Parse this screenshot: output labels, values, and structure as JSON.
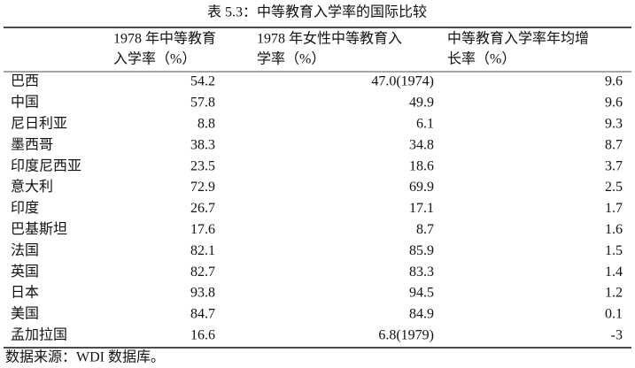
{
  "table": {
    "title": "表 5.3：中等教育入学率的国际比较",
    "header": [
      [
        "1978 年中等教育",
        "入学率（%）"
      ],
      [
        "1978 年女性中等教育入",
        "学率（%）"
      ],
      [
        "中等教育入学率年均增",
        "长率（%）"
      ]
    ],
    "rows": [
      [
        "巴西",
        "54.2",
        "47.0(1974)",
        "9.6"
      ],
      [
        "中国",
        "57.8",
        "49.9",
        "9.6"
      ],
      [
        "尼日利亚",
        "8.8",
        "6.1",
        "9.3"
      ],
      [
        "墨西哥",
        "38.3",
        "34.8",
        "8.7"
      ],
      [
        "印度尼西亚",
        "23.5",
        "18.6",
        "3.7"
      ],
      [
        "意大利",
        "72.9",
        "69.9",
        "2.5"
      ],
      [
        "印度",
        "26.7",
        "17.1",
        "1.7"
      ],
      [
        "巴基斯坦",
        "17.6",
        "8.7",
        "1.6"
      ],
      [
        "法国",
        "82.1",
        "85.9",
        "1.5"
      ],
      [
        "英国",
        "82.7",
        "83.3",
        "1.4"
      ],
      [
        "日本",
        "93.8",
        "94.5",
        "1.2"
      ],
      [
        "美国",
        "84.7",
        "84.9",
        "0.1"
      ],
      [
        "孟加拉国",
        "16.6",
        "6.8(1979)",
        "-3"
      ]
    ],
    "source": "数据来源：WDI 数据库。"
  }
}
